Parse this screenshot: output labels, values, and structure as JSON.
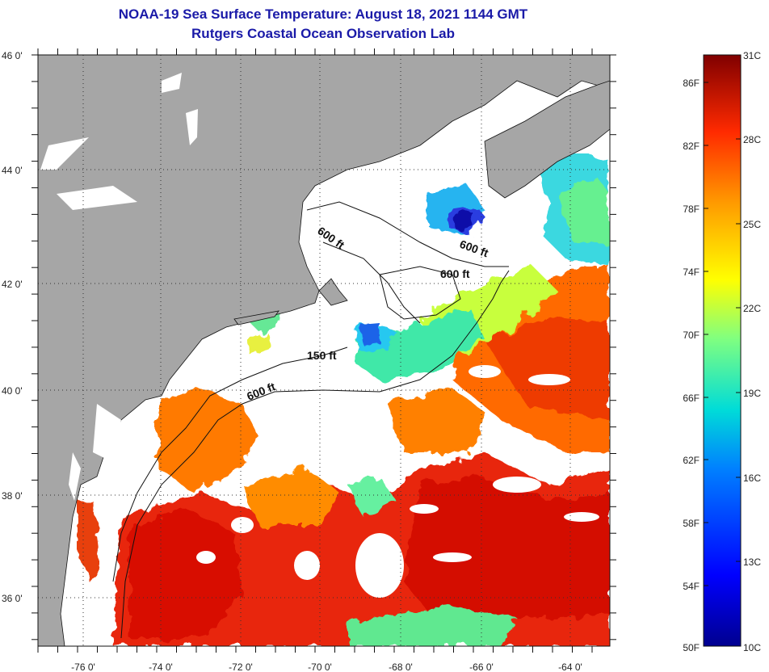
{
  "title": {
    "line1": "NOAA-19 Sea Surface Temperature:  August 18, 2021 1144 GMT",
    "line2": "Rutgers Coastal Ocean Observation Lab"
  },
  "map": {
    "lon_ticks": [
      {
        "label": "-76 0'"
      },
      {
        "label": "-74 0'"
      },
      {
        "label": "-72 0'"
      },
      {
        "label": "-70 0'"
      },
      {
        "label": "-68 0'"
      },
      {
        "label": "-66 0'"
      },
      {
        "label": "-64 0'"
      }
    ],
    "lat_ticks": [
      {
        "label": "46 0'"
      },
      {
        "label": "44 0'"
      },
      {
        "label": "42 0'"
      },
      {
        "label": "40 0'"
      },
      {
        "label": "38 0'"
      },
      {
        "label": "36 0'"
      }
    ],
    "contour_labels": [
      "600 ft",
      "600 ft",
      "600 ft",
      "150 ft",
      "600 ft"
    ],
    "colors": {
      "land": "#a6a6a6",
      "cloud": "#ffffff"
    }
  },
  "colorbar": {
    "fahrenheit": [
      "86F",
      "82F",
      "78F",
      "74F",
      "70F",
      "66F",
      "62F",
      "58F",
      "54F",
      "50F"
    ],
    "celsius": [
      "31C",
      "28C",
      "25C",
      "22C",
      "19C",
      "16C",
      "13C",
      "10C"
    ]
  }
}
